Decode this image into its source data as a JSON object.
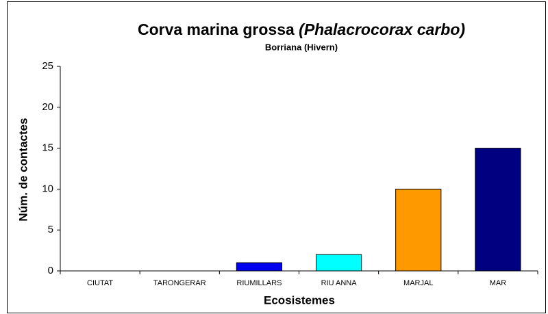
{
  "chart_data": {
    "type": "bar",
    "title": "Corva marina grossa",
    "title_species": "(Phalacrocorax carbo)",
    "subtitle": "Borriana (Hivern)",
    "x_label": "Ecosistemes",
    "y_label": "Núm. de contactes",
    "categories": [
      "CIUTAT",
      "TARONGERAR",
      "RIUMILLARS",
      "RIU ANNA",
      "MARJAL",
      "MAR"
    ],
    "values": [
      0,
      0,
      1,
      2,
      10,
      15
    ],
    "colors": [
      null,
      null,
      "#0000ee",
      "#00ffff",
      "#ff9900",
      "#000080"
    ],
    "ylim": [
      0,
      25
    ],
    "yticks": [
      0,
      5,
      10,
      15,
      20,
      25
    ],
    "grid": false
  }
}
